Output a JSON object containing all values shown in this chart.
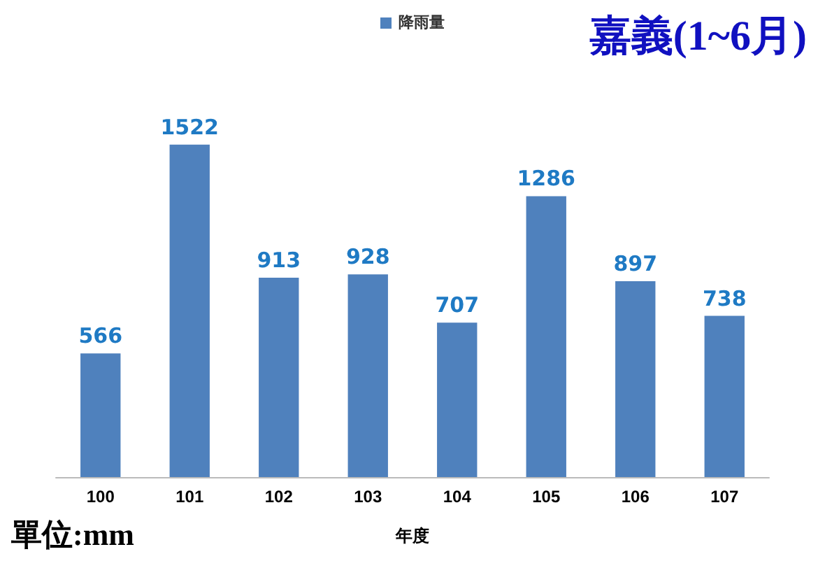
{
  "chart_data": {
    "type": "bar",
    "title": "嘉義(1~6月)",
    "xlabel": "年度",
    "categories": [
      "100",
      "101",
      "102",
      "103",
      "104",
      "105",
      "106",
      "107"
    ],
    "series": [
      {
        "name": "降雨量",
        "color": "#4f81bd",
        "values": [
          566,
          1522,
          913,
          928,
          707,
          1286,
          897,
          738
        ]
      }
    ],
    "data_labels": true,
    "legend": "top",
    "annotations": [
      "單位:mm"
    ]
  }
}
